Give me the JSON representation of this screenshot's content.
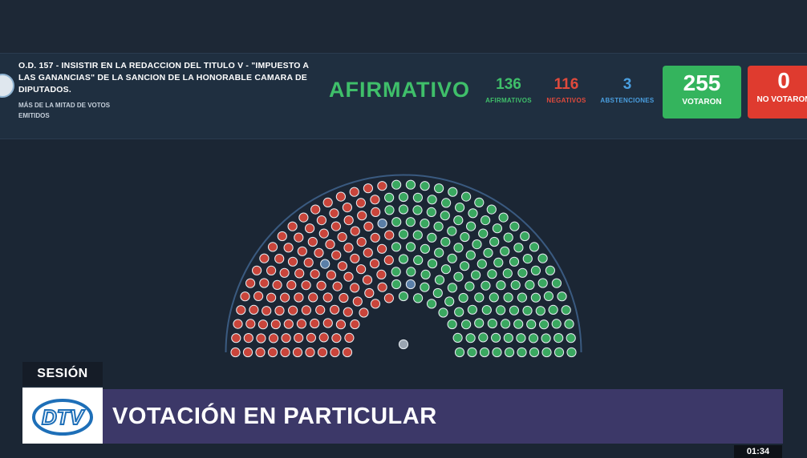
{
  "header": {
    "title": "O.D. 157 - INSISTIR EN LA REDACCION DEL TITULO V - \"IMPUESTO A LAS GANANCIAS\" DE LA SANCION DE LA HONORABLE CAMARA DE DIPUTADOS.",
    "subtitle": "MÁS DE LA MITAD DE VOTOS EMITIDOS",
    "result": "AFIRMATIVO"
  },
  "stats": {
    "afirmativos": {
      "value": "136",
      "label": "AFIRMATIVOS"
    },
    "negativos": {
      "value": "116",
      "label": "NEGATIVOS"
    },
    "abstenciones": {
      "value": "3",
      "label": "ABSTENCIONES"
    }
  },
  "totals": {
    "votaron": {
      "value": "255",
      "label": "VOTARON"
    },
    "no_votaron": {
      "value": "0",
      "label": "NO VOTARON"
    }
  },
  "hemicycle": {
    "counts": {
      "afirmativo": 136,
      "negativo": 116,
      "abstencion": 3
    },
    "colors": {
      "afirmativo": "#3aa860",
      "negativo": "#c9453b",
      "abstencion": "#5a7fa8",
      "presidency": "#9aa5b1"
    }
  },
  "lower_third": {
    "section": "SESIÓN",
    "logo_text": "DTV",
    "banner": "VOTACIÓN EN PARTICULAR",
    "clock": "01:34"
  },
  "colors": {
    "background": "#1b2634",
    "header": "#1f2f40",
    "green": "#3fbf6a",
    "red": "#e04a3c",
    "blue": "#4a9fe0",
    "banner": "#3c3868"
  }
}
